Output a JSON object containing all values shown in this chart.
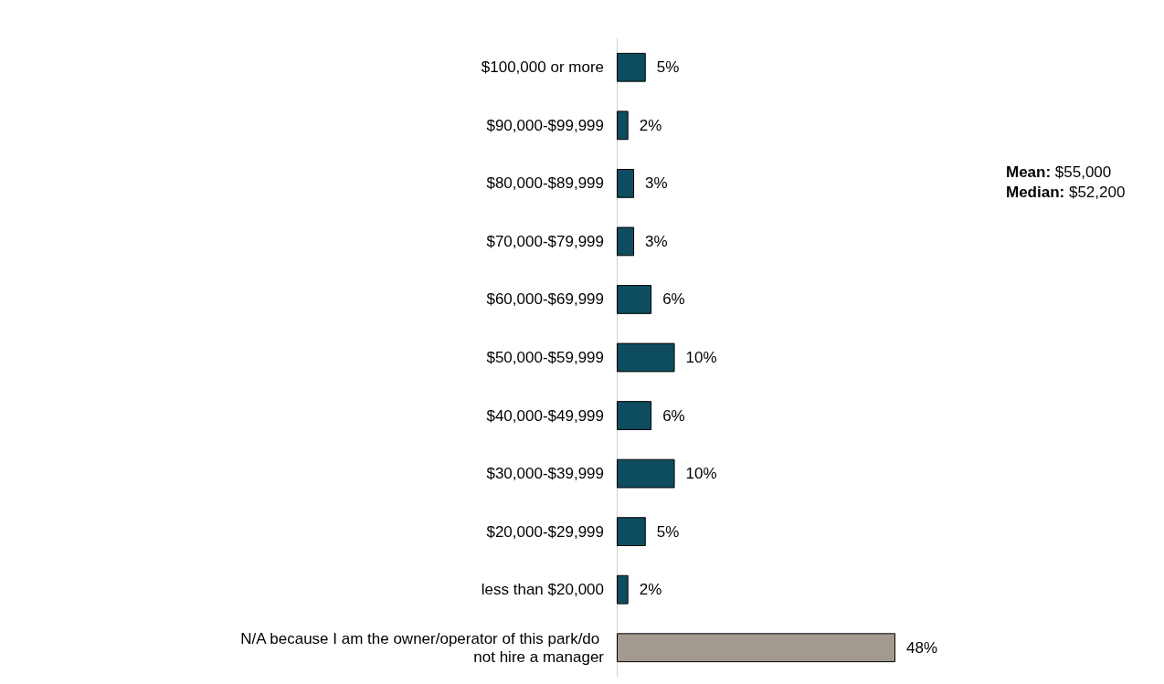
{
  "chart_data": {
    "type": "bar",
    "orientation": "horizontal",
    "categories": [
      "$100,000 or more",
      "$90,000-$99,999",
      "$80,000-$89,999",
      "$70,000-$79,999",
      "$60,000-$69,999",
      "$50,000-$59,999",
      "$40,000-$49,999",
      "$30,000-$39,999",
      "$20,000-$29,999",
      "less than $20,000",
      "N/A because I am the owner/operator of this park/do not hire a manager"
    ],
    "values": [
      5,
      2,
      3,
      3,
      6,
      10,
      6,
      10,
      5,
      2,
      48
    ],
    "colors": [
      "#0e4d5f",
      "#0e4d5f",
      "#0e4d5f",
      "#0e4d5f",
      "#0e4d5f",
      "#0e4d5f",
      "#0e4d5f",
      "#0e4d5f",
      "#0e4d5f",
      "#0e4d5f",
      "#a39a8f"
    ],
    "value_labels": [
      "5%",
      "2%",
      "3%",
      "3%",
      "6%",
      "10%",
      "6%",
      "10%",
      "5%",
      "2%",
      "48%"
    ],
    "annotations": [
      "Mean: $55,000",
      "Median: $52,200"
    ],
    "grid": false
  }
}
